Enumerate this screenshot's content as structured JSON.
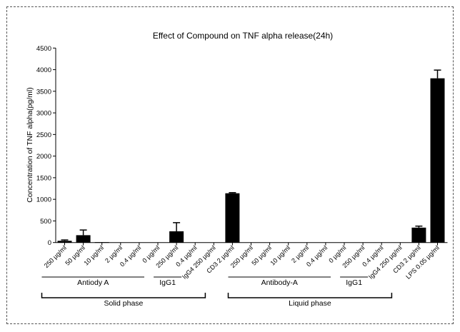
{
  "chart_data": {
    "type": "bar",
    "title": "Effect of Compound on TNF alpha release(24h)",
    "xlabel": "",
    "ylabel": "Concentration of TNF alpha(pg/ml)",
    "ylim": [
      0,
      4500
    ],
    "yticks": [
      0,
      500,
      1000,
      1500,
      2000,
      2500,
      3000,
      3500,
      4000,
      4500
    ],
    "grid": false,
    "bar_color": "#000000",
    "categories": [
      "250 µg/ml",
      "50 µg/ml",
      "10 µg/ml",
      "2 µg/ml",
      "0.4 µg/ml",
      "0 µg/ml",
      "250 µg/ml",
      "0.4 µg/ml",
      "IgG4 250 µg/ml",
      "CD3 2 µg/ml",
      "250 µg/ml",
      "50 µg/ml",
      "10 µg/ml",
      "2 µg/ml",
      "0.4 µg/ml",
      "0 µg/ml",
      "250 µg/ml",
      "0.4 µg/ml",
      "IgG4 250 µg/ml",
      "CD3 2 µg/ml",
      "LPS 0.05 µg/ml"
    ],
    "values": [
      40,
      170,
      10,
      0,
      0,
      0,
      260,
      0,
      0,
      1140,
      0,
      0,
      0,
      0,
      0,
      0,
      0,
      0,
      0,
      345,
      3800
    ],
    "errors": [
      20,
      120,
      0,
      0,
      0,
      0,
      200,
      0,
      0,
      15,
      0,
      0,
      0,
      0,
      0,
      0,
      0,
      0,
      0,
      35,
      190
    ],
    "groups": [
      {
        "label": "Antiody A",
        "from": 0,
        "to": 5
      },
      {
        "label": "IgG1",
        "from": 6,
        "to": 7
      },
      {
        "label": "Antibody-A",
        "from": 10,
        "to": 15
      },
      {
        "label": "IgG1",
        "from": 16,
        "to": 17
      }
    ],
    "phases": [
      {
        "label": "Solid phase",
        "from": 0,
        "to": 9
      },
      {
        "label": "Liquid phase",
        "from": 10,
        "to": 19
      }
    ]
  }
}
